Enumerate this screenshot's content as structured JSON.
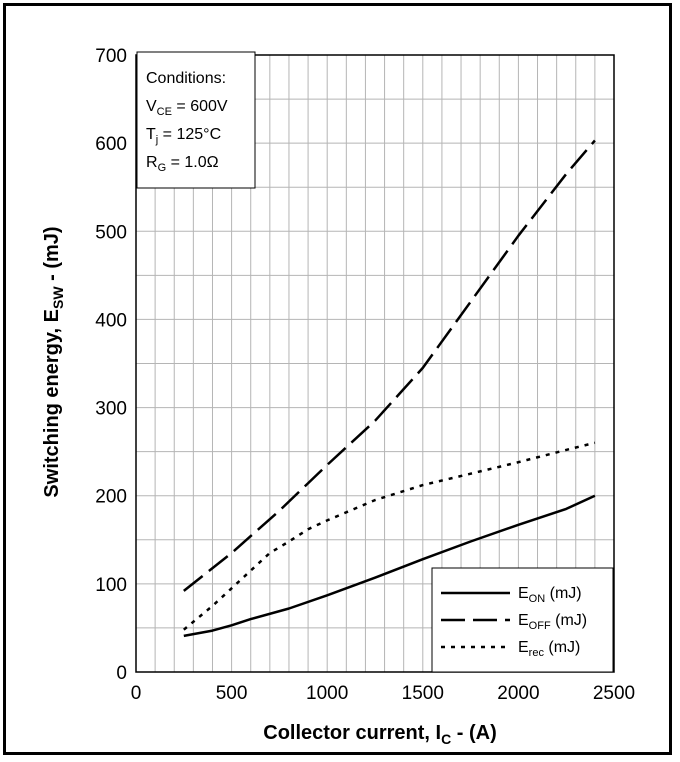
{
  "chart_data": {
    "type": "line",
    "xlabel": "Collector current, I",
    "xlabel_sub": "C",
    "xlabel_suffix": " - (A)",
    "ylabel": "Switching energy, E",
    "ylabel_sub": "SW",
    "ylabel_suffix": " - (mJ)",
    "xlim": [
      0,
      2500
    ],
    "ylim": [
      0,
      700
    ],
    "x_ticks": [
      0,
      500,
      1000,
      1500,
      2000,
      2500
    ],
    "y_ticks": [
      0,
      100,
      200,
      300,
      400,
      500,
      600,
      700
    ],
    "grid": true,
    "conditions": {
      "title": "Conditions:",
      "lines": [
        {
          "main": "V",
          "sub": "CE",
          "rest": " = 600V"
        },
        {
          "main": "T",
          "sub": "j",
          "rest": " = 125°C"
        },
        {
          "main": "R",
          "sub": "G",
          "rest": " = 1.0Ω"
        }
      ]
    },
    "legend_position": "bottom-right",
    "series": [
      {
        "name": "E",
        "name_sub": "ON",
        "name_suffix": " (mJ)",
        "style": "solid",
        "x": [
          250,
          400,
          500,
          600,
          800,
          1000,
          1250,
          1500,
          1750,
          2000,
          2250,
          2400
        ],
        "y": [
          41,
          47,
          53,
          60,
          72,
          87,
          107,
          128,
          148,
          167,
          185,
          200
        ]
      },
      {
        "name": "E",
        "name_sub": "OFF",
        "name_suffix": " (mJ)",
        "style": "long-dash",
        "x": [
          250,
          500,
          750,
          1000,
          1250,
          1500,
          1750,
          2000,
          2250,
          2400
        ],
        "y": [
          92,
          135,
          183,
          235,
          285,
          345,
          420,
          495,
          565,
          603
        ]
      },
      {
        "name": "E",
        "name_sub": "rec",
        "name_suffix": " (mJ)",
        "style": "dotted",
        "x": [
          250,
          400,
          500,
          600,
          700,
          800,
          900,
          1000,
          1250,
          1500,
          1750,
          2000,
          2250,
          2400
        ],
        "y": [
          48,
          75,
          95,
          115,
          135,
          148,
          162,
          172,
          195,
          212,
          225,
          238,
          252,
          260
        ]
      }
    ]
  }
}
